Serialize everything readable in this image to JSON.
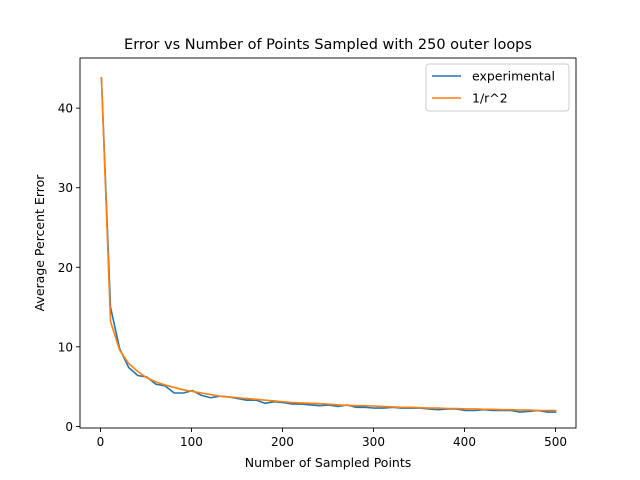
{
  "chart_data": {
    "type": "line",
    "title": "Error vs Number of Points Sampled with 250 outer loops",
    "xlabel": "Number of Sampled Points",
    "ylabel": "Average Percent Error",
    "xlim": [
      -22.5,
      522.5
    ],
    "ylim": [
      -0.2,
      46.3
    ],
    "xticks": [
      0,
      100,
      200,
      300,
      400,
      500
    ],
    "yticks": [
      0,
      10,
      20,
      30,
      40
    ],
    "legend_position": "top-right",
    "series": [
      {
        "name": "experimental",
        "color": "#1f77b4",
        "x": [
          1,
          11,
          21,
          31,
          41,
          51,
          61,
          71,
          81,
          91,
          101,
          111,
          121,
          131,
          141,
          151,
          161,
          171,
          181,
          191,
          201,
          211,
          221,
          231,
          241,
          251,
          261,
          271,
          281,
          291,
          301,
          311,
          321,
          331,
          341,
          351,
          361,
          371,
          381,
          391,
          401,
          411,
          421,
          431,
          441,
          451,
          461,
          471,
          481,
          491,
          501
        ],
        "y": [
          43.9,
          15.0,
          9.8,
          7.4,
          6.4,
          6.2,
          5.3,
          5.1,
          4.2,
          4.2,
          4.5,
          3.9,
          3.6,
          3.8,
          3.7,
          3.5,
          3.3,
          3.3,
          2.9,
          3.1,
          3.0,
          2.8,
          2.8,
          2.7,
          2.6,
          2.7,
          2.5,
          2.7,
          2.4,
          2.4,
          2.3,
          2.3,
          2.4,
          2.3,
          2.3,
          2.3,
          2.2,
          2.1,
          2.2,
          2.2,
          2.0,
          2.0,
          2.1,
          2.0,
          2.0,
          2.0,
          1.8,
          1.9,
          2.0,
          1.8,
          1.8
        ]
      },
      {
        "name": "1/r^2",
        "color": "#ff7f0e",
        "x": [
          1,
          11,
          21,
          31,
          41,
          51,
          61,
          71,
          81,
          91,
          101,
          111,
          121,
          131,
          141,
          151,
          161,
          171,
          181,
          191,
          201,
          211,
          221,
          231,
          241,
          251,
          261,
          271,
          281,
          291,
          301,
          311,
          321,
          331,
          341,
          351,
          361,
          371,
          381,
          391,
          401,
          411,
          421,
          431,
          441,
          451,
          461,
          471,
          481,
          491,
          501
        ],
        "y": [
          43.9,
          13.2,
          9.6,
          7.9,
          6.9,
          6.1,
          5.6,
          5.2,
          4.9,
          4.6,
          4.4,
          4.2,
          4.0,
          3.8,
          3.7,
          3.6,
          3.5,
          3.4,
          3.3,
          3.2,
          3.1,
          3.0,
          2.95,
          2.9,
          2.85,
          2.8,
          2.7,
          2.65,
          2.6,
          2.6,
          2.55,
          2.5,
          2.45,
          2.4,
          2.4,
          2.35,
          2.3,
          2.3,
          2.25,
          2.25,
          2.2,
          2.2,
          2.15,
          2.15,
          2.1,
          2.1,
          2.05,
          2.05,
          2.0,
          2.0,
          2.0
        ]
      }
    ]
  }
}
